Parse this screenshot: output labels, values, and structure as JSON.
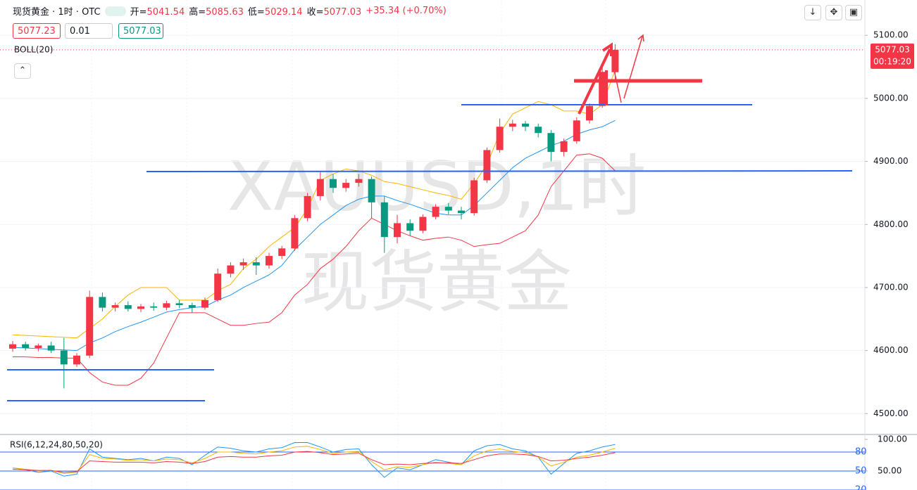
{
  "header": {
    "symbol": "现货黄金 · 1时 · OTC",
    "ohlc": [
      {
        "label": "开=",
        "value": "5041.54"
      },
      {
        "label": "高=",
        "value": "5085.63"
      },
      {
        "label": "低=",
        "value": "5029.14"
      },
      {
        "label": "收=",
        "value": "5077.03"
      }
    ],
    "change": "+35.34 (+0.70%)"
  },
  "order": {
    "sell": "5077.23",
    "qty": "0.01",
    "buy": "5077.03"
  },
  "chart_data": [
    {
      "type": "candlestick",
      "indicator": "BOLL(20)",
      "watermark": [
        "XAUUSD,1时",
        "现货黄金"
      ],
      "up_color": "#f23645",
      "down_color": "#089981",
      "ohlc": [
        [
          4603,
          4615,
          4598,
          4610
        ],
        [
          4610,
          4614,
          4600,
          4604
        ],
        [
          4604,
          4611,
          4599,
          4608
        ],
        [
          4608,
          4614,
          4596,
          4600
        ],
        [
          4600,
          4620,
          4540,
          4578
        ],
        [
          4578,
          4596,
          4574,
          4592
        ],
        [
          4592,
          4695,
          4588,
          4685
        ],
        [
          4685,
          4692,
          4662,
          4668
        ],
        [
          4668,
          4676,
          4662,
          4672
        ],
        [
          4672,
          4678,
          4662,
          4666
        ],
        [
          4666,
          4674,
          4661,
          4670
        ],
        [
          4670,
          4676,
          4663,
          4668
        ],
        [
          4668,
          4679,
          4664,
          4675
        ],
        [
          4675,
          4680,
          4667,
          4672
        ],
        [
          4672,
          4676,
          4660,
          4668
        ],
        [
          4668,
          4684,
          4665,
          4680
        ],
        [
          4680,
          4730,
          4677,
          4722
        ],
        [
          4722,
          4740,
          4716,
          4735
        ],
        [
          4735,
          4746,
          4728,
          4740
        ],
        [
          4740,
          4748,
          4720,
          4735
        ],
        [
          4735,
          4755,
          4730,
          4750
        ],
        [
          4750,
          4766,
          4745,
          4762
        ],
        [
          4762,
          4815,
          4758,
          4810
        ],
        [
          4810,
          4850,
          4805,
          4845
        ],
        [
          4845,
          4885,
          4838,
          4872
        ],
        [
          4872,
          4880,
          4850,
          4858
        ],
        [
          4858,
          4872,
          4852,
          4866
        ],
        [
          4866,
          4880,
          4860,
          4872
        ],
        [
          4872,
          4876,
          4810,
          4835
        ],
        [
          4835,
          4845,
          4755,
          4780
        ],
        [
          4780,
          4815,
          4770,
          4802
        ],
        [
          4802,
          4808,
          4782,
          4790
        ],
        [
          4790,
          4816,
          4786,
          4812
        ],
        [
          4812,
          4832,
          4808,
          4828
        ],
        [
          4828,
          4834,
          4816,
          4822
        ],
        [
          4822,
          4828,
          4808,
          4818
        ],
        [
          4818,
          4874,
          4814,
          4870
        ],
        [
          4870,
          4922,
          4866,
          4918
        ],
        [
          4918,
          4968,
          4914,
          4955
        ],
        [
          4955,
          4966,
          4948,
          4960
        ],
        [
          4960,
          4964,
          4948,
          4955
        ],
        [
          4955,
          4960,
          4938,
          4945
        ],
        [
          4945,
          4950,
          4900,
          4915
        ],
        [
          4915,
          4936,
          4908,
          4932
        ],
        [
          4932,
          4970,
          4928,
          4965
        ],
        [
          4965,
          4992,
          4960,
          4988
        ],
        [
          4988,
          5050,
          4985,
          5042
        ],
        [
          5041.54,
          5085.63,
          5029.14,
          5077.03
        ]
      ],
      "series": [
        {
          "color": "#f5b700",
          "values": [
            4625,
            4624,
            4623,
            4622,
            4621,
            4620,
            4635,
            4650,
            4670,
            4688,
            4700,
            4700,
            4700,
            4680,
            4680,
            4680,
            4695,
            4705,
            4730,
            4745,
            4765,
            4780,
            4795,
            4825,
            4870,
            4880,
            4888,
            4885,
            4878,
            4868,
            4865,
            4860,
            4855,
            4850,
            4846,
            4840,
            4865,
            4895,
            4945,
            4975,
            4985,
            4995,
            4990,
            4980,
            4980,
            4975,
            4990,
            5045
          ]
        },
        {
          "color": "#2196f3",
          "values": [
            4605,
            4604,
            4603,
            4602,
            4601,
            4600,
            4612,
            4620,
            4630,
            4638,
            4645,
            4653,
            4661,
            4665,
            4668,
            4670,
            4680,
            4688,
            4700,
            4710,
            4720,
            4735,
            4760,
            4780,
            4800,
            4815,
            4830,
            4840,
            4845,
            4845,
            4838,
            4832,
            4825,
            4818,
            4815,
            4815,
            4830,
            4850,
            4870,
            4890,
            4905,
            4915,
            4925,
            4932,
            4943,
            4950,
            4955,
            4965
          ]
        },
        {
          "color": "#f23645",
          "values": [
            4590,
            4590,
            4589,
            4589,
            4588,
            4588,
            4565,
            4550,
            4545,
            4545,
            4556,
            4580,
            4620,
            4660,
            4660,
            4660,
            4650,
            4640,
            4640,
            4643,
            4645,
            4660,
            4688,
            4705,
            4730,
            4745,
            4765,
            4790,
            4810,
            4800,
            4790,
            4782,
            4775,
            4778,
            4780,
            4775,
            4765,
            4768,
            4770,
            4780,
            4790,
            4815,
            4860,
            4885,
            4910,
            4912,
            4905,
            4885
          ]
        }
      ],
      "ylim": [
        4468,
        5156
      ],
      "yticks": [
        {
          "value": 4500,
          "label": "4500.00"
        },
        {
          "value": 4600,
          "label": "4600.00"
        },
        {
          "value": 4700,
          "label": "4700.00"
        },
        {
          "value": 4800,
          "label": "4800.00"
        },
        {
          "value": 4900,
          "label": "4900.00"
        },
        {
          "value": 5000,
          "label": "5000.00"
        },
        {
          "value": 5100,
          "label": "5100.00"
        }
      ],
      "last_price": {
        "value": 5077.03,
        "label": "5077.03"
      },
      "countdown": "00:19:20"
    },
    {
      "type": "line",
      "title": "RSI(6,12,24,80,50,20)",
      "series": [
        {
          "color": "#2196f3",
          "values": [
            55,
            52,
            48,
            50,
            42,
            45,
            85,
            72,
            70,
            68,
            70,
            66,
            72,
            70,
            60,
            75,
            88,
            86,
            82,
            80,
            85,
            87,
            95,
            95,
            88,
            80,
            84,
            85,
            60,
            40,
            55,
            52,
            60,
            68,
            64,
            60,
            82,
            90,
            92,
            85,
            82,
            72,
            45,
            62,
            78,
            82,
            88,
            92
          ]
        },
        {
          "color": "#f5b700",
          "values": [
            55,
            53,
            50,
            51,
            46,
            48,
            76,
            70,
            69,
            67,
            68,
            66,
            69,
            68,
            63,
            70,
            80,
            80,
            78,
            77,
            80,
            82,
            88,
            89,
            84,
            78,
            80,
            81,
            65,
            52,
            57,
            56,
            60,
            64,
            62,
            60,
            74,
            82,
            85,
            81,
            79,
            72,
            58,
            64,
            72,
            75,
            80,
            86
          ]
        },
        {
          "color": "#f23645",
          "values": [
            53,
            52,
            51,
            51,
            48,
            49,
            66,
            65,
            64,
            64,
            64,
            63,
            65,
            64,
            62,
            65,
            72,
            73,
            72,
            72,
            74,
            75,
            80,
            81,
            79,
            76,
            77,
            78,
            68,
            60,
            61,
            60,
            62,
            63,
            63,
            62,
            68,
            74,
            77,
            77,
            76,
            73,
            66,
            67,
            70,
            72,
            75,
            79
          ]
        }
      ],
      "levels": [
        80,
        50,
        20
      ],
      "level_color": "#2962ff",
      "ylim": [
        20,
        105.6
      ],
      "yticks": [
        {
          "value": 100,
          "label": "100.00"
        },
        {
          "value": 50,
          "label": "50.00"
        }
      ]
    }
  ]
}
